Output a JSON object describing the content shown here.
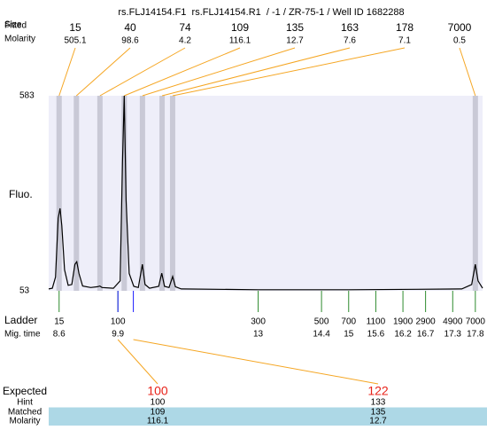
{
  "header": {
    "title": "rs.FLJ14154.F1  rs.FLJ14154.R1  / -1 / ZR-75-1 / Well ID 1682288",
    "size_label": "Size",
    "fitted_label": "Fitted",
    "molarity_label": "Molarity"
  },
  "peaks": {
    "sizes": [
      15,
      40,
      74,
      109,
      135,
      163,
      178,
      7000
    ],
    "molarity": [
      505.1,
      98.6,
      4.2,
      116.1,
      12.7,
      7.6,
      7.1,
      0.5
    ]
  },
  "plot": {
    "y_label": "Fluo.",
    "xlim": [
      8.37,
      17.96
    ],
    "ylim": [
      53,
      583
    ],
    "yticks": [
      53,
      583
    ],
    "trace": {
      "x": [
        8.37,
        8.45,
        8.52,
        8.58,
        8.62,
        8.66,
        8.72,
        8.8,
        8.88,
        8.95,
        8.99,
        9.04,
        9.12,
        9.3,
        9.45,
        9.5,
        9.55,
        9.8,
        9.95,
        10.0,
        10.04,
        10.08,
        10.15,
        10.25,
        10.35,
        10.44,
        10.5,
        10.6,
        10.8,
        10.87,
        10.93,
        11.03,
        11.11,
        11.17,
        11.3,
        13,
        15,
        16.5,
        17.5,
        17.72,
        17.8,
        17.86,
        17.96
      ],
      "values": [
        58,
        60,
        90,
        250,
        277,
        230,
        110,
        68,
        70,
        125,
        132,
        100,
        66,
        62,
        64,
        66,
        62,
        60,
        80,
        400,
        583,
        300,
        100,
        65,
        62,
        125,
        70,
        60,
        65,
        101,
        65,
        62,
        92,
        64,
        58,
        56,
        56,
        57,
        58,
        70,
        125,
        80,
        60
      ]
    }
  },
  "ladder": {
    "label": "Ladder",
    "time_label": "Mig. time",
    "sizes": [
      15,
      100,
      300,
      500,
      700,
      1100,
      1900,
      2900,
      4900,
      7000
    ],
    "times": [
      8.6,
      9.9,
      13,
      14.4,
      15,
      15.6,
      16.2,
      16.7,
      17.3,
      17.8
    ]
  },
  "table": {
    "rows": [
      {
        "label": "Expected",
        "values": [
          100,
          122
        ]
      },
      {
        "label": "Hint",
        "values": [
          100,
          133
        ]
      },
      {
        "label": "Matched",
        "values": [
          109,
          135
        ]
      },
      {
        "label": "Molarity",
        "values": [
          116.1,
          12.7
        ]
      }
    ]
  }
}
